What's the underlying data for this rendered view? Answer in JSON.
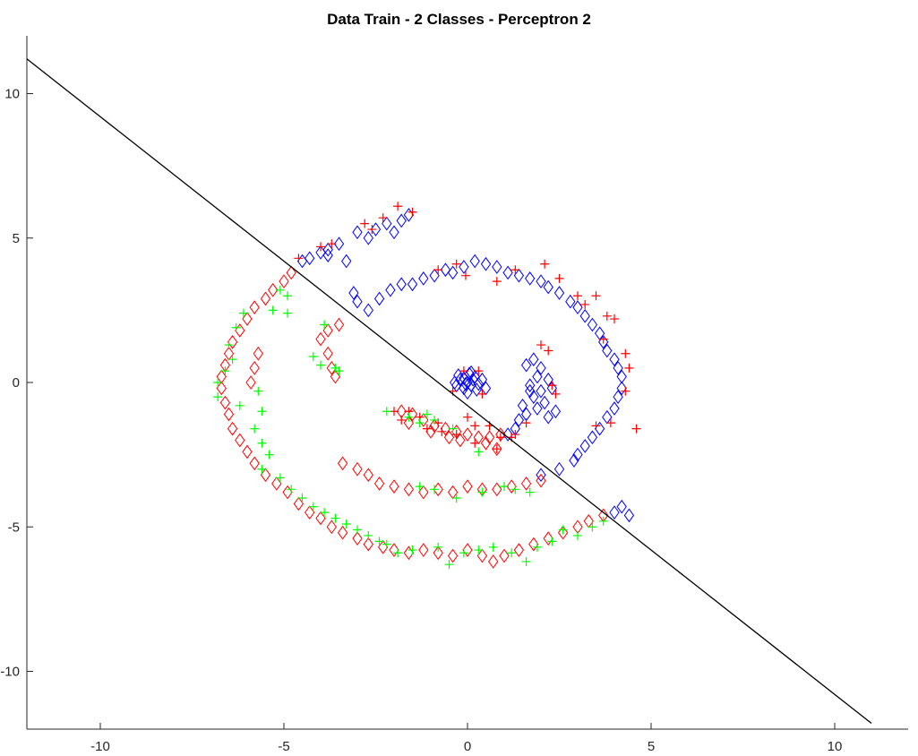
{
  "chart_data": {
    "type": "scatter",
    "title": "Data Train - 2 Classes - Perceptron 2",
    "xlabel": "",
    "ylabel": "",
    "xlim": [
      -12,
      12
    ],
    "ylim": [
      -12,
      12
    ],
    "xticks": [
      -10,
      -5,
      0,
      5,
      10
    ],
    "yticks": [
      -10,
      -5,
      0,
      5,
      10
    ],
    "grid": false,
    "decision_line": {
      "points": [
        [
          -12,
          11.2
        ],
        [
          11,
          -11.8
        ]
      ],
      "color": "#000000"
    },
    "series": [
      {
        "marker": "diamond",
        "color": "#0000ff",
        "points": [
          [
            -4.5,
            4.2
          ],
          [
            -4.3,
            4.3
          ],
          [
            -4.0,
            4.5
          ],
          [
            -3.8,
            4.6
          ],
          [
            -3.5,
            4.8
          ],
          [
            -3.3,
            4.2
          ],
          [
            -3.0,
            5.2
          ],
          [
            -2.7,
            5.0
          ],
          [
            -2.5,
            5.3
          ],
          [
            -2.2,
            5.5
          ],
          [
            -2.0,
            5.2
          ],
          [
            -1.8,
            5.6
          ],
          [
            -1.6,
            5.8
          ],
          [
            -3.8,
            4.4
          ],
          [
            -3.1,
            3.1
          ],
          [
            -3.0,
            2.8
          ],
          [
            -2.7,
            2.5
          ],
          [
            -2.4,
            2.9
          ],
          [
            -2.1,
            3.2
          ],
          [
            -1.8,
            3.4
          ],
          [
            -1.5,
            3.4
          ],
          [
            -1.2,
            3.6
          ],
          [
            -0.9,
            3.7
          ],
          [
            -0.6,
            3.9
          ],
          [
            -0.4,
            3.8
          ],
          [
            -0.1,
            4.0
          ],
          [
            0.2,
            4.2
          ],
          [
            0.5,
            4.1
          ],
          [
            0.8,
            4.0
          ],
          [
            1.1,
            3.8
          ],
          [
            1.4,
            3.7
          ],
          [
            1.7,
            3.6
          ],
          [
            2.0,
            3.5
          ],
          [
            2.2,
            3.3
          ],
          [
            2.5,
            3.1
          ],
          [
            2.8,
            2.8
          ],
          [
            3.0,
            2.6
          ],
          [
            3.2,
            2.3
          ],
          [
            3.4,
            2.0
          ],
          [
            3.6,
            1.7
          ],
          [
            3.7,
            1.4
          ],
          [
            3.8,
            1.1
          ],
          [
            4.0,
            0.8
          ],
          [
            4.1,
            0.5
          ],
          [
            4.2,
            0.2
          ],
          [
            4.2,
            -0.2
          ],
          [
            4.1,
            -0.5
          ],
          [
            4.0,
            -0.9
          ],
          [
            3.8,
            -1.2
          ],
          [
            3.6,
            -1.6
          ],
          [
            3.4,
            -1.9
          ],
          [
            3.2,
            -2.2
          ],
          [
            3.0,
            -2.5
          ],
          [
            2.9,
            -2.7
          ],
          [
            2.5,
            -3.0
          ],
          [
            2.0,
            -3.2
          ],
          [
            4.0,
            -4.5
          ],
          [
            4.2,
            -4.3
          ],
          [
            4.4,
            -4.6
          ],
          [
            0.0,
            0.0
          ],
          [
            -0.2,
            0.1
          ],
          [
            0.1,
            -0.1
          ],
          [
            0.2,
            0.2
          ],
          [
            -0.1,
            -0.2
          ],
          [
            0.3,
            -0.05
          ],
          [
            -0.3,
            -0.1
          ],
          [
            0.05,
            0.3
          ],
          [
            0.1,
            0.35
          ],
          [
            -0.25,
            0.25
          ],
          [
            0.25,
            -0.25
          ],
          [
            -0.35,
            0.0
          ],
          [
            0.4,
            0.1
          ],
          [
            0.0,
            -0.35
          ],
          [
            -0.1,
            0.15
          ],
          [
            0.15,
            0.1
          ],
          [
            0.5,
            -0.2
          ],
          [
            -0.05,
            -0.05
          ],
          [
            1.6,
            0.6
          ],
          [
            1.8,
            0.8
          ],
          [
            2.0,
            0.5
          ],
          [
            1.9,
            0.2
          ],
          [
            1.7,
            -0.1
          ],
          [
            2.0,
            -0.3
          ],
          [
            1.8,
            -0.5
          ],
          [
            2.1,
            -0.7
          ],
          [
            1.9,
            -0.9
          ],
          [
            1.6,
            -1.1
          ],
          [
            1.4,
            -1.3
          ],
          [
            1.3,
            -1.6
          ],
          [
            1.1,
            -1.8
          ],
          [
            2.2,
            -1.2
          ],
          [
            2.4,
            -1.0
          ],
          [
            2.2,
            0.1
          ],
          [
            2.3,
            -0.2
          ],
          [
            1.5,
            -0.8
          ],
          [
            1.7,
            -0.3
          ]
        ]
      },
      {
        "marker": "diamond",
        "color": "#ff0000",
        "points": [
          [
            -4.8,
            3.8
          ],
          [
            -5.0,
            3.5
          ],
          [
            -5.3,
            3.2
          ],
          [
            -5.5,
            2.9
          ],
          [
            -5.8,
            2.6
          ],
          [
            -6.0,
            2.2
          ],
          [
            -6.2,
            1.8
          ],
          [
            -6.4,
            1.4
          ],
          [
            -6.5,
            1.0
          ],
          [
            -6.6,
            0.6
          ],
          [
            -6.7,
            0.2
          ],
          [
            -6.7,
            -0.2
          ],
          [
            -6.6,
            -0.7
          ],
          [
            -6.5,
            -1.1
          ],
          [
            -6.4,
            -1.6
          ],
          [
            -6.2,
            -2.0
          ],
          [
            -6.0,
            -2.4
          ],
          [
            -5.8,
            -2.8
          ],
          [
            -5.5,
            -3.2
          ],
          [
            -5.2,
            -3.5
          ],
          [
            -4.9,
            -3.8
          ],
          [
            -4.6,
            -4.2
          ],
          [
            -4.3,
            -4.5
          ],
          [
            -4.0,
            -4.7
          ],
          [
            -3.7,
            -5.0
          ],
          [
            -3.4,
            -5.2
          ],
          [
            -3.0,
            -5.4
          ],
          [
            -2.7,
            -5.6
          ],
          [
            -2.3,
            -5.7
          ],
          [
            -2.0,
            -5.8
          ],
          [
            -1.6,
            -5.9
          ],
          [
            -1.2,
            -5.8
          ],
          [
            -0.8,
            -5.9
          ],
          [
            -0.4,
            -6.0
          ],
          [
            0.0,
            -5.8
          ],
          [
            0.4,
            -6.0
          ],
          [
            0.7,
            -6.2
          ],
          [
            1.0,
            -6.0
          ],
          [
            1.4,
            -5.8
          ],
          [
            1.8,
            -5.6
          ],
          [
            2.2,
            -5.4
          ],
          [
            2.6,
            -5.2
          ],
          [
            3.0,
            -5.0
          ],
          [
            3.3,
            -4.8
          ],
          [
            3.7,
            -4.6
          ],
          [
            -3.5,
            2.0
          ],
          [
            -3.8,
            1.8
          ],
          [
            -4.0,
            1.5
          ],
          [
            -3.8,
            1.0
          ],
          [
            -3.7,
            0.5
          ],
          [
            -3.6,
            0.2
          ],
          [
            -5.7,
            1.0
          ],
          [
            -5.8,
            0.5
          ],
          [
            -5.9,
            0.0
          ],
          [
            -3.4,
            -2.8
          ],
          [
            -3.0,
            -3.0
          ],
          [
            -2.7,
            -3.2
          ],
          [
            -2.4,
            -3.5
          ],
          [
            -2.0,
            -3.6
          ],
          [
            -1.6,
            -3.7
          ],
          [
            -1.2,
            -3.8
          ],
          [
            -0.8,
            -3.7
          ],
          [
            -0.4,
            -3.8
          ],
          [
            0.0,
            -3.6
          ],
          [
            0.4,
            -3.7
          ],
          [
            0.8,
            -3.7
          ],
          [
            1.2,
            -3.6
          ],
          [
            1.6,
            -3.5
          ],
          [
            2.0,
            -3.4
          ],
          [
            -1.8,
            -1.0
          ],
          [
            -1.5,
            -1.1
          ],
          [
            -1.2,
            -1.3
          ],
          [
            -0.9,
            -1.5
          ],
          [
            -0.6,
            -1.6
          ],
          [
            -0.3,
            -1.7
          ],
          [
            0.0,
            -1.8
          ],
          [
            0.3,
            -1.9
          ],
          [
            0.6,
            -1.9
          ],
          [
            0.9,
            -1.8
          ],
          [
            -1.6,
            -1.4
          ],
          [
            -1.0,
            -1.7
          ],
          [
            -0.5,
            -1.9
          ],
          [
            0.5,
            -2.1
          ],
          [
            0.8,
            -2.3
          ],
          [
            -0.2,
            -2.0
          ]
        ]
      },
      {
        "marker": "plus",
        "color": "#ff0000",
        "points": [
          [
            -4.6,
            4.3
          ],
          [
            -4.0,
            4.7
          ],
          [
            -3.7,
            4.8
          ],
          [
            -2.8,
            5.5
          ],
          [
            -2.3,
            5.7
          ],
          [
            -1.9,
            6.1
          ],
          [
            -1.5,
            5.9
          ],
          [
            -2.6,
            5.3
          ],
          [
            -0.8,
            3.9
          ],
          [
            -0.3,
            4.1
          ],
          [
            -0.05,
            3.7
          ],
          [
            0.8,
            3.5
          ],
          [
            1.3,
            3.9
          ],
          [
            2.1,
            4.1
          ],
          [
            2.5,
            3.6
          ],
          [
            3.0,
            3.0
          ],
          [
            3.2,
            2.7
          ],
          [
            3.5,
            3.0
          ],
          [
            3.8,
            2.3
          ],
          [
            4.0,
            2.2
          ],
          [
            3.7,
            1.5
          ],
          [
            4.3,
            1.0
          ],
          [
            4.4,
            0.5
          ],
          [
            4.3,
            -0.3
          ],
          [
            4.6,
            -1.6
          ],
          [
            3.9,
            -1.4
          ],
          [
            3.5,
            -1.5
          ],
          [
            2.3,
            -0.1
          ],
          [
            2.4,
            -0.4
          ],
          [
            2.2,
            1.1
          ],
          [
            2.0,
            1.3
          ],
          [
            1.6,
            -1.4
          ],
          [
            1.2,
            -1.9
          ],
          [
            0.9,
            -1.9
          ],
          [
            0.6,
            -1.5
          ],
          [
            0.2,
            -1.5
          ],
          [
            0.0,
            -1.2
          ],
          [
            -0.1,
            0.4
          ],
          [
            0.3,
            0.4
          ],
          [
            -0.4,
            -0.3
          ],
          [
            0.4,
            -0.4
          ],
          [
            -1.1,
            -1.6
          ],
          [
            -1.6,
            -1.0
          ],
          [
            -1.8,
            -1.3
          ],
          [
            -2.0,
            -1.0
          ],
          [
            -0.8,
            -1.4
          ],
          [
            -0.3,
            -1.8
          ],
          [
            0.2,
            -2.1
          ],
          [
            0.8,
            -2.3
          ],
          [
            1.3,
            -1.8
          ],
          [
            -1.3,
            -1.2
          ],
          [
            -0.7,
            -1.7
          ]
        ]
      },
      {
        "marker": "plus",
        "color": "#00ff00",
        "points": [
          [
            -6.1,
            2.4
          ],
          [
            -6.3,
            1.9
          ],
          [
            -6.5,
            1.3
          ],
          [
            -6.4,
            0.8
          ],
          [
            -6.6,
            0.4
          ],
          [
            -6.8,
            0.0
          ],
          [
            -6.8,
            -0.5
          ],
          [
            -6.2,
            -0.8
          ],
          [
            -5.7,
            -0.3
          ],
          [
            -5.6,
            -1.0
          ],
          [
            -5.8,
            -1.6
          ],
          [
            -5.6,
            -2.1
          ],
          [
            -5.4,
            -2.5
          ],
          [
            -5.6,
            -3.0
          ],
          [
            -5.1,
            -3.3
          ],
          [
            -4.8,
            -3.7
          ],
          [
            -4.5,
            -4.0
          ],
          [
            -4.2,
            -4.3
          ],
          [
            -3.9,
            -4.5
          ],
          [
            -3.6,
            -4.7
          ],
          [
            -3.3,
            -4.9
          ],
          [
            -3.0,
            -5.1
          ],
          [
            -2.7,
            -5.3
          ],
          [
            -2.4,
            -5.5
          ],
          [
            -2.2,
            -5.6
          ],
          [
            -1.9,
            -5.9
          ],
          [
            -1.5,
            -5.8
          ],
          [
            -0.8,
            -5.7
          ],
          [
            -0.5,
            -6.3
          ],
          [
            -0.1,
            -5.9
          ],
          [
            0.3,
            -5.8
          ],
          [
            0.7,
            -5.7
          ],
          [
            1.2,
            -5.9
          ],
          [
            1.6,
            -6.2
          ],
          [
            1.9,
            -5.7
          ],
          [
            2.3,
            -5.5
          ],
          [
            2.6,
            -5.1
          ],
          [
            3.0,
            -5.3
          ],
          [
            3.4,
            -5.0
          ],
          [
            3.7,
            -4.8
          ],
          [
            -5.1,
            3.2
          ],
          [
            -4.9,
            3.0
          ],
          [
            -5.3,
            2.5
          ],
          [
            -4.9,
            2.4
          ],
          [
            -3.9,
            2.0
          ],
          [
            -4.2,
            0.9
          ],
          [
            -4.0,
            0.6
          ],
          [
            -3.5,
            0.4
          ],
          [
            -3.6,
            0.5
          ],
          [
            -1.3,
            -3.6
          ],
          [
            -0.9,
            -3.7
          ],
          [
            -0.3,
            -4.0
          ],
          [
            0.4,
            -3.8
          ],
          [
            1.0,
            -3.6
          ],
          [
            1.3,
            -3.7
          ],
          [
            1.7,
            -3.8
          ],
          [
            -1.6,
            -1.2
          ],
          [
            -1.3,
            -1.4
          ],
          [
            -0.9,
            -1.3
          ],
          [
            -0.4,
            -1.6
          ],
          [
            0.3,
            -2.4
          ],
          [
            -2.2,
            -1.0
          ],
          [
            -1.1,
            -1.1
          ]
        ]
      }
    ]
  }
}
